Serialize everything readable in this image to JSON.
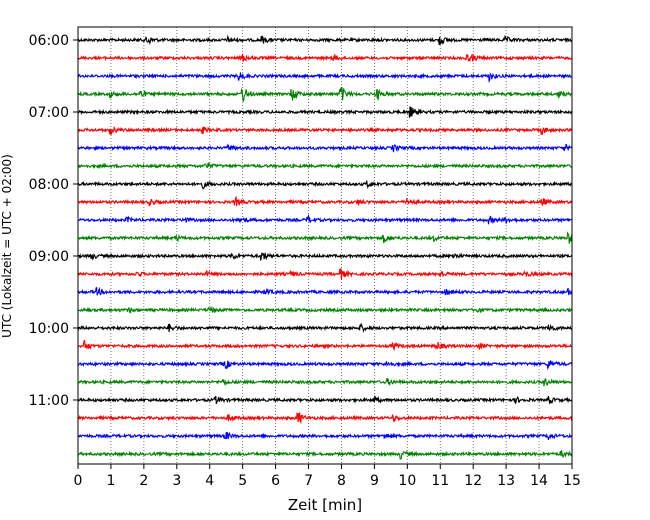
{
  "chart_data": {
    "type": "line",
    "subtype": "helicorder",
    "title": "",
    "xlabel": "Zeit  [min]",
    "ylabel": "UTC (Lokalzeit = UTC + 02:00)",
    "xlim": [
      0,
      15
    ],
    "x_ticks": [
      "0",
      "1",
      "2",
      "3",
      "4",
      "5",
      "6",
      "7",
      "8",
      "9",
      "10",
      "11",
      "12",
      "13",
      "14",
      "15"
    ],
    "y_tick_labels": [
      "06:00",
      "07:00",
      "08:00",
      "09:00",
      "10:00",
      "11:00"
    ],
    "grid": "vertical dotted at each minute",
    "trace_start_times": [
      "06:00",
      "06:15",
      "06:30",
      "06:45",
      "07:00",
      "07:15",
      "07:30",
      "07:45",
      "08:00",
      "08:15",
      "08:30",
      "08:45",
      "09:00",
      "09:15",
      "09:30",
      "09:45",
      "10:00",
      "10:15",
      "10:30",
      "10:45",
      "11:00",
      "11:15",
      "11:30",
      "11:45"
    ],
    "colors": [
      "#000000",
      "#ff0000",
      "#0000ff",
      "#008000"
    ],
    "events": [
      [
        [
          2.1,
          1.0
        ],
        [
          4.6,
          0.5
        ],
        [
          5.6,
          0.6
        ],
        [
          11.0,
          0.9
        ],
        [
          13.0,
          0.5
        ]
      ],
      [
        [
          5.0,
          0.7
        ],
        [
          7.8,
          0.5
        ],
        [
          11.8,
          0.6
        ],
        [
          12.0,
          0.4
        ]
      ],
      [
        [
          4.9,
          0.8
        ],
        [
          12.5,
          0.8
        ]
      ],
      [
        [
          1.0,
          0.6
        ],
        [
          1.9,
          0.7
        ],
        [
          5.0,
          1.6
        ],
        [
          6.5,
          1.3
        ],
        [
          8.0,
          1.5
        ],
        [
          9.1,
          0.9
        ],
        [
          14.6,
          0.5
        ]
      ],
      [
        [
          10.1,
          1.0
        ]
      ],
      [
        [
          1.0,
          0.7
        ],
        [
          3.8,
          0.5
        ],
        [
          14.1,
          0.7
        ]
      ],
      [
        [
          4.6,
          0.5
        ],
        [
          9.6,
          0.5
        ],
        [
          14.8,
          0.5
        ]
      ],
      [
        [
          3.9,
          0.6
        ]
      ],
      [
        [
          3.8,
          0.7
        ],
        [
          8.8,
          0.5
        ]
      ],
      [
        [
          2.2,
          0.6
        ],
        [
          4.8,
          0.7
        ],
        [
          8.5,
          0.5
        ],
        [
          10.0,
          0.9
        ],
        [
          14.1,
          0.7
        ]
      ],
      [
        [
          1.5,
          0.4
        ],
        [
          3.2,
          0.5
        ],
        [
          4.9,
          0.6
        ],
        [
          7.0,
          0.6
        ],
        [
          12.5,
          0.6
        ],
        [
          13.0,
          0.5
        ]
      ],
      [
        [
          3.0,
          0.4
        ],
        [
          9.3,
          0.8
        ],
        [
          10.8,
          0.5
        ],
        [
          14.9,
          1.1
        ]
      ],
      [
        [
          0.4,
          0.6
        ],
        [
          4.7,
          0.6
        ],
        [
          5.6,
          0.9
        ],
        [
          11.4,
          0.5
        ]
      ],
      [
        [
          1.8,
          0.5
        ],
        [
          3.9,
          0.4
        ],
        [
          6.5,
          0.4
        ],
        [
          8.0,
          0.9
        ],
        [
          11.0,
          0.6
        ],
        [
          13.6,
          0.5
        ]
      ],
      [
        [
          0.6,
          0.6
        ],
        [
          5.7,
          0.5
        ],
        [
          11.2,
          0.5
        ],
        [
          14.9,
          0.5
        ]
      ],
      [
        [
          1.5,
          0.5
        ],
        [
          4.0,
          0.4
        ],
        [
          12.1,
          0.5
        ]
      ],
      [
        [
          2.8,
          0.6
        ],
        [
          8.6,
          0.6
        ],
        [
          14.3,
          0.8
        ]
      ],
      [
        [
          0.2,
          0.9
        ],
        [
          9.6,
          0.5
        ],
        [
          10.9,
          0.8
        ],
        [
          12.2,
          0.5
        ]
      ],
      [
        [
          4.5,
          0.7
        ],
        [
          9.4,
          0.6
        ],
        [
          14.3,
          0.9
        ]
      ],
      [
        [
          4.4,
          0.5
        ],
        [
          9.4,
          0.5
        ],
        [
          14.2,
          0.6
        ]
      ],
      [
        [
          4.2,
          0.6
        ],
        [
          9.0,
          0.6
        ],
        [
          13.3,
          0.5
        ],
        [
          14.3,
          0.6
        ]
      ],
      [
        [
          4.6,
          0.5
        ],
        [
          6.7,
          1.2
        ],
        [
          9.6,
          0.5
        ]
      ],
      [
        [
          4.5,
          0.7
        ],
        [
          9.3,
          0.5
        ],
        [
          14.3,
          0.7
        ]
      ],
      [
        [
          9.8,
          0.8
        ],
        [
          14.7,
          0.5
        ]
      ]
    ]
  }
}
